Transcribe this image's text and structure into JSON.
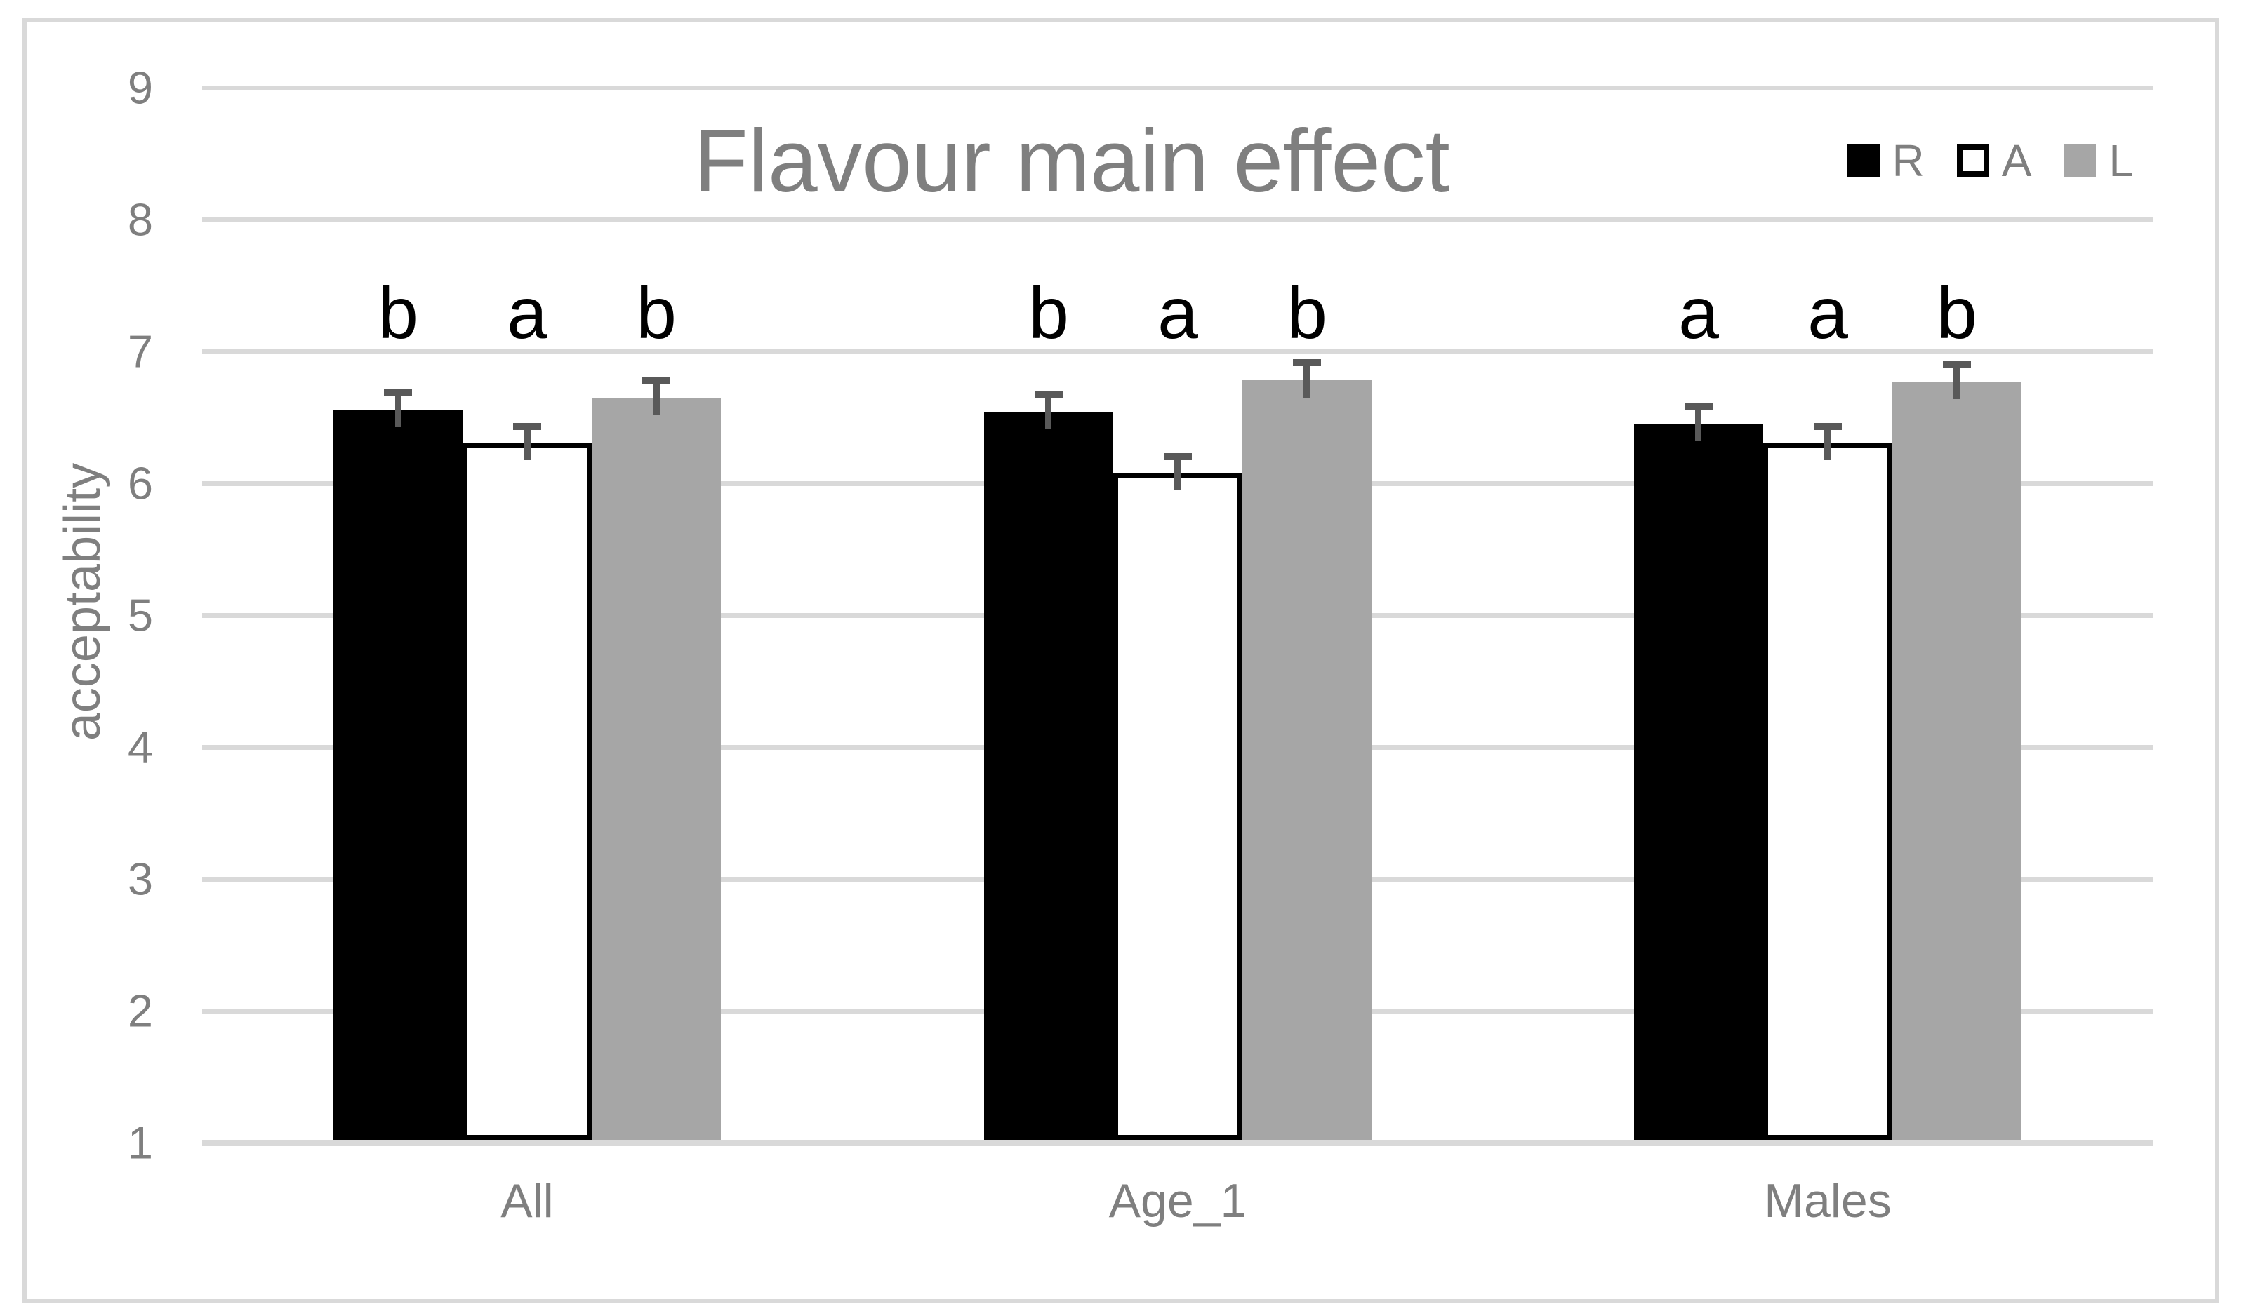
{
  "chart_data": {
    "type": "bar",
    "title": "Flavour main effect",
    "xlabel": "",
    "ylabel": "acceptability",
    "ylim": [
      1,
      9
    ],
    "yticks": [
      1,
      2,
      3,
      4,
      5,
      6,
      7,
      8,
      9
    ],
    "grid": true,
    "grid_orientation": "horizontal",
    "legend_position": "top-right",
    "legend_entries": [
      "R",
      "A",
      "L"
    ],
    "categories": [
      "All",
      "Age_1",
      "Males"
    ],
    "series": [
      {
        "name": "R",
        "fill": "#000000",
        "border": "#000000",
        "values": [
          6.56,
          6.54,
          6.45
        ],
        "errors_up": [
          0.16,
          0.16,
          0.16
        ],
        "sig_letters": [
          "b",
          "b",
          "a"
        ]
      },
      {
        "name": "A",
        "fill": "#ffffff",
        "border": "#000000",
        "values": [
          6.31,
          6.08,
          6.31
        ],
        "errors_up": [
          0.15,
          0.15,
          0.15
        ],
        "sig_letters": [
          "a",
          "a",
          "a"
        ]
      },
      {
        "name": "L",
        "fill": "#a6a6a6",
        "border": "#a6a6a6",
        "values": [
          6.65,
          6.78,
          6.77
        ],
        "errors_up": [
          0.16,
          0.16,
          0.16
        ],
        "sig_letters": [
          "b",
          "b",
          "b"
        ]
      }
    ],
    "sig_letters_by_category": {
      "All": [
        "b",
        "a",
        "b"
      ],
      "Age_1": [
        "b",
        "a",
        "b"
      ],
      "Males": [
        "a",
        "a",
        "b"
      ]
    },
    "colors": {
      "grid": "#d9d9d9",
      "frame_border": "#d9d9d9",
      "axis_text": "#7f7f7f",
      "title_text": "#7f7f7f",
      "error_bar": "#595959",
      "sig_letter": "#000000",
      "background": "#ffffff"
    }
  }
}
